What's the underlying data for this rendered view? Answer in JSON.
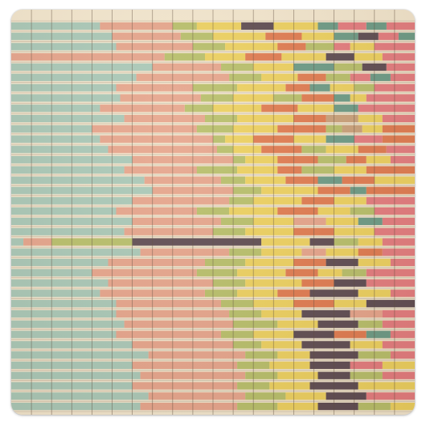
{
  "image": {
    "description_kind": "vintage stacked horizontal bar chart print on a square sticker",
    "palette": {
      "background": "#f3e7cf",
      "grid_line": "#5b4b3d",
      "mint": "#a8c8b8",
      "salmon": "#e6a48c",
      "olive": "#b7bf6a",
      "yellow": "#edd15f",
      "orange": "#e07a50",
      "plum": "#5c4a52",
      "pink": "#e47b7f",
      "teal": "#6a9a86",
      "tan": "#c9a07a"
    },
    "row_count": 38,
    "column_count": 20,
    "segments_per_row": [
      [
        [
          "mint",
          0.22
        ],
        [
          "salmon",
          0.4
        ],
        [
          "olive",
          0.46
        ],
        [
          "yellow",
          0.57
        ],
        [
          "plum",
          0.65
        ],
        [
          "yellow",
          0.76
        ],
        [
          "teal",
          0.81
        ],
        [
          "pink",
          0.88
        ],
        [
          "teal",
          0.93
        ],
        [
          "pink",
          1.0
        ]
      ],
      [
        [
          "mint",
          0.25
        ],
        [
          "salmon",
          0.42
        ],
        [
          "olive",
          0.5
        ],
        [
          "yellow",
          0.63
        ],
        [
          "orange",
          0.72
        ],
        [
          "yellow",
          0.8
        ],
        [
          "teal",
          0.86
        ],
        [
          "plum",
          0.91
        ],
        [
          "pink",
          0.96
        ],
        [
          "teal",
          1.0
        ]
      ],
      [
        [
          "mint",
          0.26
        ],
        [
          "salmon",
          0.45
        ],
        [
          "olive",
          0.53
        ],
        [
          "yellow",
          0.66
        ],
        [
          "orange",
          0.73
        ],
        [
          "olive",
          0.8
        ],
        [
          "pink",
          0.84
        ],
        [
          "yellow",
          0.9
        ],
        [
          "pink",
          1.0
        ]
      ],
      [
        [
          "salmon",
          0.38
        ],
        [
          "olive",
          0.48
        ],
        [
          "yellow",
          0.58
        ],
        [
          "orange",
          0.67
        ],
        [
          "yellow",
          0.78
        ],
        [
          "plum",
          0.85
        ],
        [
          "yellow",
          0.92
        ],
        [
          "pink",
          1.0
        ]
      ],
      [
        [
          "mint",
          0.35
        ],
        [
          "salmon",
          0.52
        ],
        [
          "olive",
          0.6
        ],
        [
          "yellow",
          0.7
        ],
        [
          "teal",
          0.8
        ],
        [
          "olive",
          0.87
        ],
        [
          "plum",
          0.93
        ],
        [
          "pink",
          1.0
        ]
      ],
      [
        [
          "mint",
          0.31
        ],
        [
          "salmon",
          0.54
        ],
        [
          "olive",
          0.62
        ],
        [
          "yellow",
          0.71
        ],
        [
          "orange",
          0.78
        ],
        [
          "olive",
          0.84
        ],
        [
          "pink",
          0.89
        ],
        [
          "teal",
          0.94
        ],
        [
          "pink",
          1.0
        ]
      ],
      [
        [
          "mint",
          0.26
        ],
        [
          "salmon",
          0.45
        ],
        [
          "olive",
          0.56
        ],
        [
          "yellow",
          0.68
        ],
        [
          "orange",
          0.74
        ],
        [
          "teal",
          0.79
        ],
        [
          "yellow",
          0.85
        ],
        [
          "olive",
          0.9
        ],
        [
          "pink",
          1.0
        ]
      ],
      [
        [
          "mint",
          0.27
        ],
        [
          "salmon",
          0.47
        ],
        [
          "olive",
          0.55
        ],
        [
          "yellow",
          0.65
        ],
        [
          "olive",
          0.72
        ],
        [
          "orange",
          0.8
        ],
        [
          "teal",
          0.84
        ],
        [
          "yellow",
          0.88
        ],
        [
          "pink",
          1.0
        ]
      ],
      [
        [
          "mint",
          0.22
        ],
        [
          "salmon",
          0.43
        ],
        [
          "olive",
          0.5
        ],
        [
          "yellow",
          0.62
        ],
        [
          "orange",
          0.71
        ],
        [
          "yellow",
          0.8
        ],
        [
          "teal",
          0.86
        ],
        [
          "pink",
          1.0
        ]
      ],
      [
        [
          "mint",
          0.28
        ],
        [
          "salmon",
          0.48
        ],
        [
          "olive",
          0.56
        ],
        [
          "yellow",
          0.7
        ],
        [
          "orange",
          0.78
        ],
        [
          "tan",
          0.86
        ],
        [
          "yellow",
          0.92
        ],
        [
          "pink",
          1.0
        ]
      ],
      [
        [
          "mint",
          0.2
        ],
        [
          "salmon",
          0.46
        ],
        [
          "olive",
          0.55
        ],
        [
          "yellow",
          0.66
        ],
        [
          "orange",
          0.78
        ],
        [
          "olive",
          0.82
        ],
        [
          "tan",
          0.87
        ],
        [
          "yellow",
          0.92
        ],
        [
          "orange",
          1.0
        ]
      ],
      [
        [
          "mint",
          0.22
        ],
        [
          "salmon",
          0.5
        ],
        [
          "olive",
          0.53
        ],
        [
          "yellow",
          0.6
        ],
        [
          "orange",
          0.7
        ],
        [
          "yellow",
          0.78
        ],
        [
          "teal",
          0.85
        ],
        [
          "pink",
          0.92
        ],
        [
          "orange",
          1.0
        ]
      ],
      [
        [
          "mint",
          0.24
        ],
        [
          "salmon",
          0.51
        ],
        [
          "olive",
          0.55
        ],
        [
          "yellow",
          0.62
        ],
        [
          "orange",
          0.72
        ],
        [
          "olive",
          0.78
        ],
        [
          "yellow",
          0.86
        ],
        [
          "orange",
          0.93
        ],
        [
          "pink",
          1.0
        ]
      ],
      [
        [
          "mint",
          0.3
        ],
        [
          "salmon",
          0.55
        ],
        [
          "olive",
          0.58
        ],
        [
          "yellow",
          0.66
        ],
        [
          "orange",
          0.76
        ],
        [
          "olive",
          0.83
        ],
        [
          "orange",
          0.88
        ],
        [
          "yellow",
          0.94
        ],
        [
          "pink",
          1.0
        ]
      ],
      [
        [
          "mint",
          0.28
        ],
        [
          "salmon",
          0.46
        ],
        [
          "olive",
          0.56
        ],
        [
          "yellow",
          0.66
        ],
        [
          "orange",
          0.72
        ],
        [
          "olive",
          0.8
        ],
        [
          "yellow",
          0.88
        ],
        [
          "orange",
          1.0
        ]
      ],
      [
        [
          "mint",
          0.33
        ],
        [
          "salmon",
          0.52
        ],
        [
          "olive",
          0.58
        ],
        [
          "yellow",
          0.68
        ],
        [
          "orange",
          0.76
        ],
        [
          "teal",
          0.82
        ],
        [
          "orange",
          0.9
        ],
        [
          "yellow",
          1.0
        ]
      ],
      [
        [
          "mint",
          0.35
        ],
        [
          "salmon",
          0.55
        ],
        [
          "olive",
          0.62
        ],
        [
          "yellow",
          0.7
        ],
        [
          "yellow",
          0.76
        ],
        [
          "orange",
          0.84
        ],
        [
          "teal",
          0.88
        ],
        [
          "orange",
          1.0
        ]
      ],
      [
        [
          "mint",
          0.3
        ],
        [
          "salmon",
          0.54
        ],
        [
          "olive",
          0.6
        ],
        [
          "yellow",
          0.72
        ],
        [
          "orange",
          0.8
        ],
        [
          "yellow",
          0.88
        ],
        [
          "pink",
          1.0
        ]
      ],
      [
        [
          "mint",
          0.26
        ],
        [
          "salmon",
          0.46
        ],
        [
          "olive",
          0.54
        ],
        [
          "yellow",
          0.66
        ],
        [
          "orange",
          0.76
        ],
        [
          "yellow",
          0.84
        ],
        [
          "olive",
          0.9
        ],
        [
          "pink",
          1.0
        ]
      ],
      [
        [
          "mint",
          0.3
        ],
        [
          "salmon",
          0.52
        ],
        [
          "olive",
          0.6
        ],
        [
          "yellow",
          0.7
        ],
        [
          "salmon",
          0.78
        ],
        [
          "yellow",
          0.86
        ],
        [
          "teal",
          0.92
        ],
        [
          "pink",
          1.0
        ]
      ],
      [
        [
          "mint",
          0.28
        ],
        [
          "salmon",
          0.5
        ],
        [
          "olive",
          0.58
        ],
        [
          "yellow",
          0.7
        ],
        [
          "orange",
          0.8
        ],
        [
          "yellow",
          0.9
        ],
        [
          "pink",
          1.0
        ]
      ],
      [
        [
          "mint",
          0.03
        ],
        [
          "salmon",
          0.1
        ],
        [
          "olive",
          0.3
        ],
        [
          "plum",
          0.62
        ],
        [
          "yellow",
          0.74
        ],
        [
          "plum",
          0.8
        ],
        [
          "olive",
          0.86
        ],
        [
          "yellow",
          0.92
        ],
        [
          "pink",
          1.0
        ]
      ],
      [
        [
          "mint",
          0.32
        ],
        [
          "salmon",
          0.54
        ],
        [
          "olive",
          0.62
        ],
        [
          "yellow",
          0.72
        ],
        [
          "salmon",
          0.78
        ],
        [
          "yellow",
          0.86
        ],
        [
          "orange",
          0.92
        ],
        [
          "pink",
          1.0
        ]
      ],
      [
        [
          "mint",
          0.24
        ],
        [
          "salmon",
          0.48
        ],
        [
          "olive",
          0.58
        ],
        [
          "yellow",
          0.7
        ],
        [
          "orange",
          0.78
        ],
        [
          "plum",
          0.86
        ],
        [
          "yellow",
          0.94
        ],
        [
          "pink",
          1.0
        ]
      ],
      [
        [
          "mint",
          0.2
        ],
        [
          "salmon",
          0.46
        ],
        [
          "olive",
          0.56
        ],
        [
          "yellow",
          0.68
        ],
        [
          "orange",
          0.76
        ],
        [
          "yellow",
          0.82
        ],
        [
          "olive",
          0.88
        ],
        [
          "pink",
          1.0
        ]
      ],
      [
        [
          "mint",
          0.24
        ],
        [
          "salmon",
          0.5
        ],
        [
          "olive",
          0.58
        ],
        [
          "yellow",
          0.72
        ],
        [
          "orange",
          0.8
        ],
        [
          "plum",
          0.88
        ],
        [
          "pink",
          1.0
        ]
      ],
      [
        [
          "mint",
          0.22
        ],
        [
          "salmon",
          0.48
        ],
        [
          "olive",
          0.56
        ],
        [
          "yellow",
          0.66
        ],
        [
          "orange",
          0.74
        ],
        [
          "plum",
          0.86
        ],
        [
          "yellow",
          0.94
        ],
        [
          "pink",
          1.0
        ]
      ],
      [
        [
          "mint",
          0.26
        ],
        [
          "salmon",
          0.52
        ],
        [
          "olive",
          0.6
        ],
        [
          "yellow",
          0.7
        ],
        [
          "orange",
          0.8
        ],
        [
          "yellow",
          0.88
        ],
        [
          "plum",
          1.0
        ]
      ],
      [
        [
          "mint",
          0.26
        ],
        [
          "salmon",
          0.54
        ],
        [
          "olive",
          0.62
        ],
        [
          "yellow",
          0.72
        ],
        [
          "plum",
          0.84
        ],
        [
          "salmon",
          0.92
        ],
        [
          "pink",
          1.0
        ]
      ],
      [
        [
          "mint",
          0.28
        ],
        [
          "salmon",
          0.55
        ],
        [
          "olive",
          0.66
        ],
        [
          "yellow",
          0.76
        ],
        [
          "plum",
          0.86
        ],
        [
          "olive",
          0.92
        ],
        [
          "pink",
          1.0
        ]
      ],
      [
        [
          "mint",
          0.26
        ],
        [
          "salmon",
          0.52
        ],
        [
          "olive",
          0.6
        ],
        [
          "yellow",
          0.7
        ],
        [
          "plum",
          0.8
        ],
        [
          "orange",
          0.88
        ],
        [
          "teal",
          0.94
        ],
        [
          "pink",
          1.0
        ]
      ],
      [
        [
          "mint",
          0.3
        ],
        [
          "salmon",
          0.55
        ],
        [
          "olive",
          0.62
        ],
        [
          "yellow",
          0.72
        ],
        [
          "plum",
          0.84
        ],
        [
          "yellow",
          0.92
        ],
        [
          "pink",
          1.0
        ]
      ],
      [
        [
          "mint",
          0.34
        ],
        [
          "salmon",
          0.58
        ],
        [
          "olive",
          0.66
        ],
        [
          "yellow",
          0.74
        ],
        [
          "plum",
          0.86
        ],
        [
          "olive",
          0.94
        ],
        [
          "pink",
          1.0
        ]
      ],
      [
        [
          "mint",
          0.3
        ],
        [
          "salmon",
          0.56
        ],
        [
          "olive",
          0.64
        ],
        [
          "yellow",
          0.74
        ],
        [
          "plum",
          0.84
        ],
        [
          "pink",
          0.92
        ],
        [
          "yellow",
          1.0
        ]
      ],
      [
        [
          "mint",
          0.32
        ],
        [
          "salmon",
          0.58
        ],
        [
          "olive",
          0.66
        ],
        [
          "yellow",
          0.76
        ],
        [
          "plum",
          0.84
        ],
        [
          "olive",
          0.92
        ],
        [
          "pink",
          1.0
        ]
      ],
      [
        [
          "mint",
          0.3
        ],
        [
          "salmon",
          0.56
        ],
        [
          "olive",
          0.64
        ],
        [
          "yellow",
          0.74
        ],
        [
          "plum",
          0.86
        ],
        [
          "yellow",
          1.0
        ]
      ],
      [
        [
          "mint",
          0.34
        ],
        [
          "salmon",
          0.58
        ],
        [
          "olive",
          0.68
        ],
        [
          "yellow",
          0.78
        ],
        [
          "plum",
          0.88
        ],
        [
          "pink",
          1.0
        ]
      ],
      [
        [
          "mint",
          0.32
        ],
        [
          "salmon",
          0.56
        ],
        [
          "olive",
          0.66
        ],
        [
          "yellow",
          0.76
        ],
        [
          "plum",
          0.86
        ],
        [
          "olive",
          0.94
        ],
        [
          "yellow",
          1.0
        ]
      ]
    ]
  }
}
